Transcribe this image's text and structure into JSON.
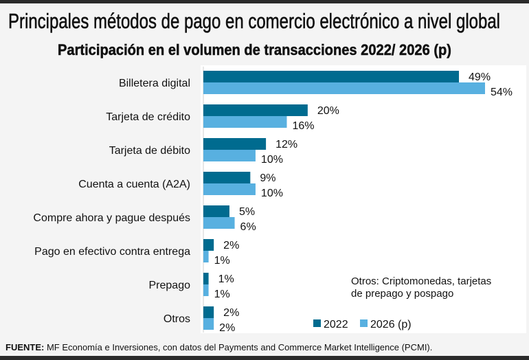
{
  "chart_data": {
    "type": "bar",
    "orientation": "horizontal",
    "title": "Principales métodos de pago en comercio electrónico a nivel global",
    "subtitle": "Participación en el volumen de transacciones 2022/ 2026 (p)",
    "categories": [
      "Billetera digital",
      "Tarjeta de crédito",
      "Tarjeta de débito",
      "Cuenta a cuenta (A2A)",
      "Compre ahora y pague después",
      "Pago en efectivo contra entrega",
      "Prepago",
      "Otros"
    ],
    "series": [
      {
        "name": "2022",
        "color": "#006b8f",
        "values": [
          49,
          20,
          12,
          9,
          5,
          2,
          1,
          2
        ]
      },
      {
        "name": "2026 (p)",
        "color": "#58b0e0",
        "values": [
          54,
          16,
          10,
          10,
          6,
          1,
          1,
          2
        ]
      }
    ],
    "value_suffix": "%",
    "xlim": [
      0,
      60
    ],
    "legend": "bottom-right",
    "grid": false,
    "note": [
      "Otros: Criptomonedas, tarjetas",
      "de prepago y pospago"
    ],
    "source_label": "FUENTE:",
    "source_text": "MF Economía e Inversiones, con datos del Payments and Commerce Market Intelligence (PCMI)."
  }
}
